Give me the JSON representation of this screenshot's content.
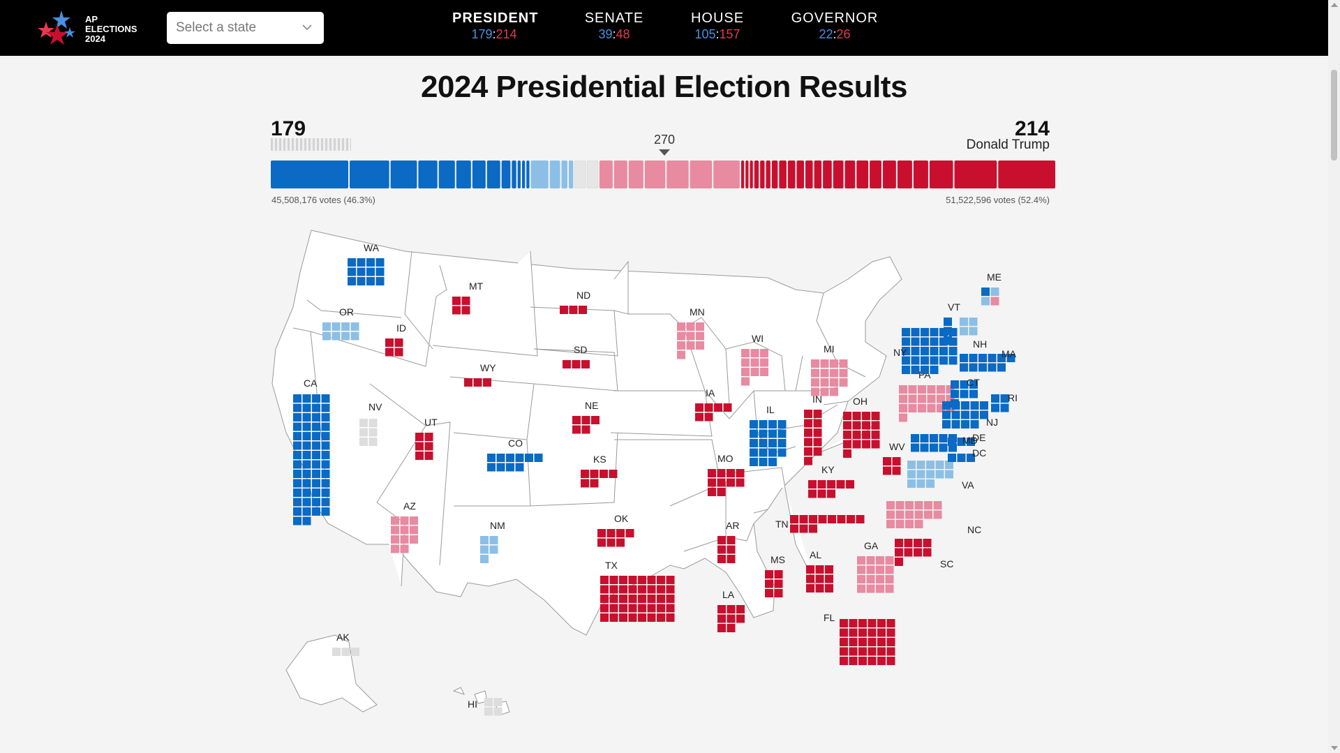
{
  "header": {
    "logo": {
      "line1": "AP",
      "line2": "ELECTIONS",
      "line3": "2024"
    },
    "state_select": {
      "placeholder": "Select a state"
    },
    "races": [
      {
        "name": "PRESIDENT",
        "dem": "179",
        "rep": "214"
      },
      {
        "name": "SENATE",
        "dem": "39",
        "rep": "48"
      },
      {
        "name": "HOUSE",
        "dem": "105",
        "rep": "157"
      },
      {
        "name": "GOVERNOR",
        "dem": "22",
        "rep": "26"
      }
    ]
  },
  "page": {
    "title": "2024 Presidential Election Results"
  },
  "tally": {
    "dem_ev": "179",
    "rep_ev": "214",
    "rep_name": "Donald Trump",
    "threshold": "270",
    "dem_votes": "45,508,176 votes (46.3%)",
    "rep_votes": "51,522,596 votes (52.4%)",
    "total_ev": 538
  },
  "colors": {
    "dem_won": "#0a6ac4",
    "dem_leading": "#8cbfe6",
    "rep_won": "#c8102e",
    "rep_leading": "#e88aa0",
    "pending": "#dddddd",
    "bar_pending": "#e6e6e6",
    "dem_header": "#4a90e2",
    "rep_header": "#e8384f"
  },
  "map": {
    "states": [
      {
        "abbr": "WA",
        "ev": 12,
        "status": "dem_won"
      },
      {
        "abbr": "OR",
        "ev": 8,
        "status": "dem_leading"
      },
      {
        "abbr": "CA",
        "ev": 54,
        "status": "dem_won"
      },
      {
        "abbr": "NV",
        "ev": 6,
        "status": "pending"
      },
      {
        "abbr": "ID",
        "ev": 4,
        "status": "rep_won"
      },
      {
        "abbr": "MT",
        "ev": 4,
        "status": "rep_won"
      },
      {
        "abbr": "WY",
        "ev": 3,
        "status": "rep_won"
      },
      {
        "abbr": "UT",
        "ev": 6,
        "status": "rep_won"
      },
      {
        "abbr": "CO",
        "ev": 10,
        "status": "dem_won"
      },
      {
        "abbr": "AZ",
        "ev": 11,
        "status": "rep_leading"
      },
      {
        "abbr": "NM",
        "ev": 5,
        "status": "dem_leading"
      },
      {
        "abbr": "ND",
        "ev": 3,
        "status": "rep_won"
      },
      {
        "abbr": "SD",
        "ev": 3,
        "status": "rep_won"
      },
      {
        "abbr": "NE",
        "ev": 5,
        "status": "rep_won"
      },
      {
        "abbr": "KS",
        "ev": 6,
        "status": "rep_won"
      },
      {
        "abbr": "OK",
        "ev": 7,
        "status": "rep_won"
      },
      {
        "abbr": "TX",
        "ev": 40,
        "status": "rep_won"
      },
      {
        "abbr": "MN",
        "ev": 10,
        "status": "rep_leading"
      },
      {
        "abbr": "IA",
        "ev": 6,
        "status": "rep_won"
      },
      {
        "abbr": "MO",
        "ev": 10,
        "status": "rep_won"
      },
      {
        "abbr": "AR",
        "ev": 6,
        "status": "rep_won"
      },
      {
        "abbr": "LA",
        "ev": 8,
        "status": "rep_won"
      },
      {
        "abbr": "WI",
        "ev": 10,
        "status": "rep_leading"
      },
      {
        "abbr": "IL",
        "ev": 19,
        "status": "dem_won"
      },
      {
        "abbr": "MI",
        "ev": 15,
        "status": "rep_leading"
      },
      {
        "abbr": "IN",
        "ev": 11,
        "status": "rep_won"
      },
      {
        "abbr": "OH",
        "ev": 17,
        "status": "rep_won"
      },
      {
        "abbr": "KY",
        "ev": 8,
        "status": "rep_won"
      },
      {
        "abbr": "TN",
        "ev": 11,
        "status": "rep_won"
      },
      {
        "abbr": "MS",
        "ev": 6,
        "status": "rep_won"
      },
      {
        "abbr": "AL",
        "ev": 9,
        "status": "rep_won"
      },
      {
        "abbr": "GA",
        "ev": 16,
        "status": "rep_leading"
      },
      {
        "abbr": "FL",
        "ev": 30,
        "status": "rep_won"
      },
      {
        "abbr": "SC",
        "ev": 9,
        "status": "rep_won"
      },
      {
        "abbr": "NC",
        "ev": 16,
        "status": "rep_leading"
      },
      {
        "abbr": "VA",
        "ev": 13,
        "status": "dem_leading"
      },
      {
        "abbr": "WV",
        "ev": 4,
        "status": "rep_won"
      },
      {
        "abbr": "PA",
        "ev": 19,
        "status": "rep_leading"
      },
      {
        "abbr": "NY",
        "ev": 28,
        "status": "dem_won"
      },
      {
        "abbr": "VT",
        "ev": 3,
        "status": "dem_won"
      },
      {
        "abbr": "NH",
        "ev": 4,
        "status": "dem_leading"
      },
      {
        "abbr": "ME",
        "ev": 4,
        "status": "split"
      },
      {
        "abbr": "MA",
        "ev": 11,
        "status": "dem_won"
      },
      {
        "abbr": "RI",
        "ev": 4,
        "status": "dem_won"
      },
      {
        "abbr": "CT",
        "ev": 7,
        "status": "dem_won"
      },
      {
        "abbr": "NJ",
        "ev": 14,
        "status": "dem_won"
      },
      {
        "abbr": "DE",
        "ev": 3,
        "status": "dem_won"
      },
      {
        "abbr": "MD",
        "ev": 10,
        "status": "dem_won"
      },
      {
        "abbr": "DC",
        "ev": 3,
        "status": "dem_won"
      },
      {
        "abbr": "AK",
        "ev": 3,
        "status": "pending"
      },
      {
        "abbr": "HI",
        "ev": 4,
        "status": "pending"
      }
    ]
  }
}
